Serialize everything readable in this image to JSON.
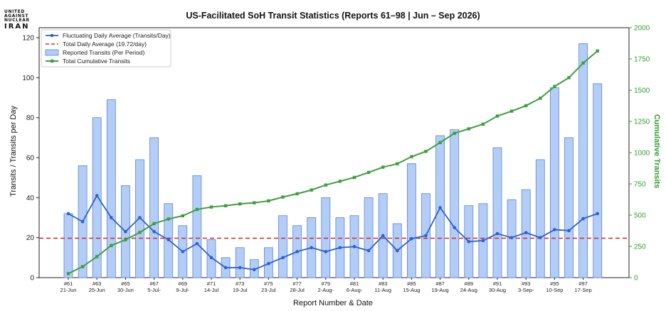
{
  "logo": {
    "line1": "UNITED",
    "line2": "AGAINST",
    "line3": "NUCLEAR",
    "line4": "IRAN"
  },
  "chart_data": {
    "type": "bar",
    "title": "US-Facilitated SoH Transit Statistics (Reports 61–98 | Jun – Sep 2026)",
    "xlabel": "Report Number & Date",
    "ylabel": "Transits / Transits per Day",
    "y2label": "Cumulative Transits",
    "ylim": [
      0,
      125
    ],
    "y2lim": [
      0,
      2000
    ],
    "yticks": [
      0,
      20,
      40,
      60,
      80,
      100,
      120
    ],
    "y2ticks": [
      0,
      250,
      500,
      750,
      1000,
      1250,
      1500,
      1750,
      2000
    ],
    "grid": false,
    "legend": "top-left",
    "x_tick_labels": [
      {
        "index": 0,
        "report": "#61",
        "date": "21-Jun"
      },
      {
        "index": 2,
        "report": "#63",
        "date": "25-Jun"
      },
      {
        "index": 4,
        "report": "#65",
        "date": "30-Jun"
      },
      {
        "index": 6,
        "report": "#67",
        "date": "5-Jul-"
      },
      {
        "index": 8,
        "report": "#69",
        "date": "9-Jul-"
      },
      {
        "index": 10,
        "report": "#71",
        "date": "14-Jul"
      },
      {
        "index": 12,
        "report": "#73",
        "date": "19-Jul"
      },
      {
        "index": 14,
        "report": "#75",
        "date": "23-Jul"
      },
      {
        "index": 16,
        "report": "#77",
        "date": "28-Jul"
      },
      {
        "index": 18,
        "report": "#79",
        "date": "2-Aug-"
      },
      {
        "index": 20,
        "report": "#81",
        "date": "6-Aug-"
      },
      {
        "index": 22,
        "report": "#83",
        "date": "11-Aug"
      },
      {
        "index": 24,
        "report": "#85",
        "date": "15-Aug"
      },
      {
        "index": 26,
        "report": "#87",
        "date": "19-Aug"
      },
      {
        "index": 28,
        "report": "#89",
        "date": "24-Aug"
      },
      {
        "index": 30,
        "report": "#91",
        "date": "30-Aug"
      },
      {
        "index": 32,
        "report": "#93",
        "date": "3-Sep-"
      },
      {
        "index": 34,
        "report": "#95",
        "date": "10-Sep"
      },
      {
        "index": 36,
        "report": "#97",
        "date": "17-Sep"
      }
    ],
    "series": [
      {
        "name": "Reported Transits (Per Period)",
        "type": "bar",
        "axis": "left",
        "values": [
          32,
          56,
          80,
          89,
          46,
          59,
          70,
          37,
          26,
          51,
          19,
          10,
          15,
          9,
          15,
          31,
          26,
          30,
          40,
          30,
          31,
          40,
          42,
          27,
          57,
          42,
          71,
          74,
          36,
          37,
          65,
          39,
          44,
          59,
          95,
          70,
          117,
          97
        ]
      },
      {
        "name": "Fluctuating Daily Average (Transits/Day)",
        "type": "line",
        "axis": "left",
        "values": [
          32,
          28,
          41,
          30,
          23,
          30,
          23,
          19,
          13,
          17,
          10,
          5,
          5,
          4,
          7,
          10,
          13,
          15,
          13,
          15,
          15.5,
          13.5,
          21,
          13.5,
          19.5,
          21,
          35,
          25,
          18,
          18.5,
          22,
          20,
          22.5,
          20,
          24,
          23.5,
          29.5,
          32
        ]
      },
      {
        "name": "Total Daily Average (19.72/day)",
        "type": "hline",
        "axis": "left",
        "value": 19.72
      },
      {
        "name": "Total Cumulative Transits",
        "type": "line",
        "axis": "right",
        "values": [
          32,
          88,
          168,
          257,
          303,
          362,
          432,
          469,
          495,
          546,
          565,
          575,
          590,
          599,
          614,
          645,
          671,
          701,
          741,
          771,
          802,
          842,
          884,
          911,
          968,
          1010,
          1081,
          1155,
          1191,
          1228,
          1293,
          1332,
          1376,
          1435,
          1530,
          1600,
          1717,
          1814
        ]
      }
    ],
    "colors": {
      "bar_fill": "#b3cdf6",
      "bar_edge": "#5b86d6",
      "daily_avg": "#2f5fd0",
      "total_avg": "#d62728",
      "cumulative": "#3f9e3f",
      "right_axis": "#2f9e2f"
    }
  }
}
